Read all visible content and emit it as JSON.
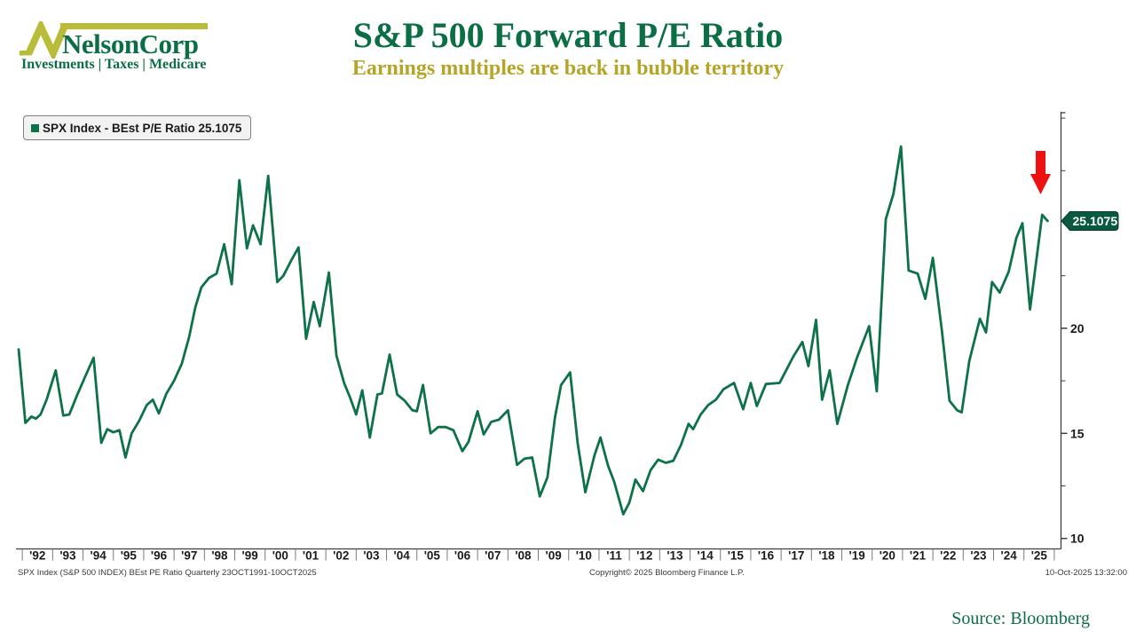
{
  "logo": {
    "name": "NelsonCorp",
    "tagline": "Investments | Taxes | Medicare"
  },
  "header": {
    "title": "S&P 500 Forward P/E Ratio",
    "subtitle": "Earnings multiples are back in bubble territory"
  },
  "legend": {
    "label": "SPX Index - BEst P/E Ratio 25.1075"
  },
  "footnotes": {
    "left": "SPX Index (S&P 500 INDEX) BEst PE Ratio Quarterly 23OCT1991-10OCT2025",
    "center": "Copyright© 2025 Bloomberg Finance L.P.",
    "right": "10-Oct-2025 13:32:00"
  },
  "source_label": "Source: Bloomberg",
  "colors": {
    "line": "#0d7149",
    "brand_green": "#0b6e45",
    "brand_chartreuse": "#b9bc38",
    "subtitle_gold": "#b5a426",
    "tag_bg": "#085940",
    "tag_text": "#ffffff",
    "arrow_red": "#ee1111",
    "axis": "#3f3f3f",
    "tick_label": "#1a1a1a"
  },
  "chart_data": {
    "type": "line",
    "title": "S&P 500 Forward P/E Ratio",
    "xlabel": "",
    "ylabel": "",
    "grid": false,
    "legend_position": "top-left",
    "x_range_years": [
      1991.85,
      2025.78
    ],
    "ylim": [
      9.5,
      30.3
    ],
    "y_axis": {
      "ticks_labeled": [
        10,
        15,
        20
      ],
      "ticks_minor": [
        12.5,
        17.5,
        22.5,
        27.5,
        30
      ],
      "side": "right"
    },
    "x_axis": {
      "labels": [
        "'92",
        "'93",
        "'94",
        "'95",
        "'96",
        "'97",
        "'98",
        "'99",
        "'00",
        "'01",
        "'02",
        "'03",
        "'04",
        "'05",
        "'06",
        "'07",
        "'08",
        "'09",
        "'10",
        "'11",
        "'12",
        "'13",
        "'14",
        "'15",
        "'16",
        "'17",
        "'18",
        "'19",
        "'20",
        "'21",
        "'22",
        "'23",
        "'24",
        "'25"
      ],
      "first_year": 1992
    },
    "last_value": 25.1075,
    "value_tag": {
      "text": "25.1075"
    },
    "annotation": {
      "type": "down-arrow",
      "x_year": 2025.55,
      "color": "#ee1111"
    },
    "series": [
      {
        "name": "SPX Index - BEst P/E Ratio",
        "points": [
          [
            1991.88,
            19.0
          ],
          [
            1992.1,
            15.5
          ],
          [
            1992.3,
            15.8
          ],
          [
            1992.45,
            15.7
          ],
          [
            1992.6,
            15.9
          ],
          [
            1992.8,
            16.6
          ],
          [
            1993.1,
            18.0
          ],
          [
            1993.35,
            15.85
          ],
          [
            1993.55,
            15.9
          ],
          [
            1993.8,
            16.8
          ],
          [
            1994.1,
            17.8
          ],
          [
            1994.35,
            18.6
          ],
          [
            1994.6,
            14.55
          ],
          [
            1994.8,
            15.2
          ],
          [
            1995.0,
            15.05
          ],
          [
            1995.2,
            15.15
          ],
          [
            1995.4,
            13.85
          ],
          [
            1995.6,
            15.0
          ],
          [
            1995.85,
            15.6
          ],
          [
            1996.1,
            16.35
          ],
          [
            1996.3,
            16.6
          ],
          [
            1996.5,
            15.95
          ],
          [
            1996.75,
            16.9
          ],
          [
            1997.0,
            17.5
          ],
          [
            1997.25,
            18.3
          ],
          [
            1997.5,
            19.6
          ],
          [
            1997.7,
            21.0
          ],
          [
            1997.9,
            21.95
          ],
          [
            1998.15,
            22.4
          ],
          [
            1998.4,
            22.6
          ],
          [
            1998.65,
            24.0
          ],
          [
            1998.9,
            22.1
          ],
          [
            1999.15,
            27.05
          ],
          [
            1999.4,
            23.8
          ],
          [
            1999.6,
            24.9
          ],
          [
            1999.85,
            24.0
          ],
          [
            2000.1,
            27.25
          ],
          [
            2000.4,
            22.2
          ],
          [
            2000.6,
            22.5
          ],
          [
            2000.85,
            23.2
          ],
          [
            2001.1,
            23.85
          ],
          [
            2001.35,
            19.5
          ],
          [
            2001.6,
            21.25
          ],
          [
            2001.8,
            20.1
          ],
          [
            2002.1,
            22.65
          ],
          [
            2002.35,
            18.7
          ],
          [
            2002.6,
            17.4
          ],
          [
            2002.8,
            16.7
          ],
          [
            2003.0,
            15.9
          ],
          [
            2003.2,
            17.05
          ],
          [
            2003.45,
            14.8
          ],
          [
            2003.7,
            16.85
          ],
          [
            2003.85,
            16.9
          ],
          [
            2004.1,
            18.75
          ],
          [
            2004.35,
            16.85
          ],
          [
            2004.6,
            16.55
          ],
          [
            2004.85,
            16.1
          ],
          [
            2005.0,
            16.05
          ],
          [
            2005.2,
            17.3
          ],
          [
            2005.45,
            15.0
          ],
          [
            2005.7,
            15.3
          ],
          [
            2005.95,
            15.3
          ],
          [
            2006.2,
            15.15
          ],
          [
            2006.5,
            14.15
          ],
          [
            2006.7,
            14.6
          ],
          [
            2007.0,
            16.05
          ],
          [
            2007.2,
            14.95
          ],
          [
            2007.45,
            15.55
          ],
          [
            2007.7,
            15.65
          ],
          [
            2008.0,
            16.1
          ],
          [
            2008.3,
            13.5
          ],
          [
            2008.55,
            13.8
          ],
          [
            2008.8,
            13.85
          ],
          [
            2009.05,
            12.0
          ],
          [
            2009.3,
            12.9
          ],
          [
            2009.55,
            15.75
          ],
          [
            2009.75,
            17.3
          ],
          [
            2010.05,
            17.9
          ],
          [
            2010.3,
            14.5
          ],
          [
            2010.55,
            12.2
          ],
          [
            2010.85,
            13.95
          ],
          [
            2011.05,
            14.8
          ],
          [
            2011.3,
            13.45
          ],
          [
            2011.5,
            12.7
          ],
          [
            2011.8,
            11.15
          ],
          [
            2012.0,
            11.7
          ],
          [
            2012.2,
            12.8
          ],
          [
            2012.45,
            12.25
          ],
          [
            2012.7,
            13.25
          ],
          [
            2012.95,
            13.75
          ],
          [
            2013.2,
            13.6
          ],
          [
            2013.45,
            13.7
          ],
          [
            2013.7,
            14.45
          ],
          [
            2013.95,
            15.45
          ],
          [
            2014.1,
            15.2
          ],
          [
            2014.35,
            15.9
          ],
          [
            2014.6,
            16.35
          ],
          [
            2014.85,
            16.6
          ],
          [
            2015.1,
            17.1
          ],
          [
            2015.45,
            17.4
          ],
          [
            2015.75,
            16.15
          ],
          [
            2016.0,
            17.4
          ],
          [
            2016.2,
            16.3
          ],
          [
            2016.5,
            17.35
          ],
          [
            2016.95,
            17.4
          ],
          [
            2017.4,
            18.65
          ],
          [
            2017.7,
            19.35
          ],
          [
            2017.9,
            18.2
          ],
          [
            2018.15,
            20.4
          ],
          [
            2018.35,
            16.6
          ],
          [
            2018.6,
            18.0
          ],
          [
            2018.85,
            15.45
          ],
          [
            2019.2,
            17.3
          ],
          [
            2019.5,
            18.6
          ],
          [
            2019.9,
            20.1
          ],
          [
            2020.15,
            17.0
          ],
          [
            2020.45,
            25.2
          ],
          [
            2020.7,
            26.4
          ],
          [
            2020.95,
            28.65
          ],
          [
            2021.2,
            22.75
          ],
          [
            2021.5,
            22.6
          ],
          [
            2021.75,
            21.4
          ],
          [
            2022.0,
            23.35
          ],
          [
            2022.3,
            19.85
          ],
          [
            2022.55,
            16.55
          ],
          [
            2022.8,
            16.1
          ],
          [
            2022.95,
            16.0
          ],
          [
            2023.2,
            18.45
          ],
          [
            2023.55,
            20.45
          ],
          [
            2023.75,
            19.8
          ],
          [
            2023.95,
            22.2
          ],
          [
            2024.2,
            21.7
          ],
          [
            2024.5,
            22.7
          ],
          [
            2024.75,
            24.3
          ],
          [
            2024.95,
            25.0
          ],
          [
            2025.2,
            20.9
          ],
          [
            2025.6,
            25.4
          ],
          [
            2025.78,
            25.1075
          ]
        ]
      }
    ]
  }
}
